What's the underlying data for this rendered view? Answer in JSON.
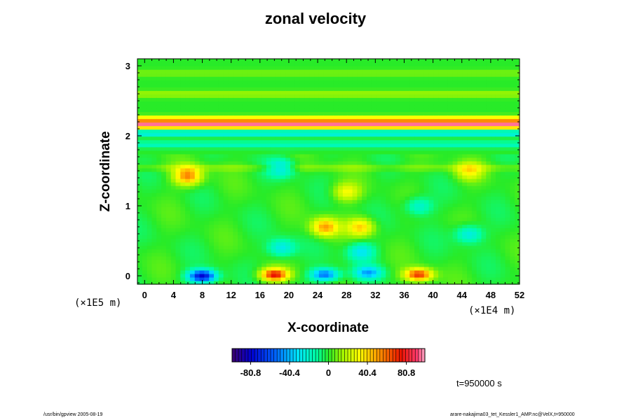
{
  "chart_data": {
    "type": "heatmap",
    "title": "zonal velocity",
    "xlabel": "X-coordinate",
    "ylabel": "Z-coordinate",
    "x_unit": "(×1E4 m)",
    "y_unit": "(×1E5 m)",
    "xlim": [
      -1,
      52
    ],
    "ylim": [
      -0.12,
      3.1
    ],
    "x_ticks": [
      "0",
      "4",
      "8",
      "12",
      "16",
      "20",
      "24",
      "28",
      "32",
      "36",
      "40",
      "44",
      "48",
      "52"
    ],
    "y_ticks": [
      "0",
      "1",
      "2",
      "3"
    ],
    "colorbar": {
      "range": [
        -100,
        100
      ],
      "tick_labels": [
        "-80.8",
        "-40.4",
        "0",
        "40.4",
        "80.8"
      ],
      "tick_values": [
        -80.8,
        -40.4,
        0,
        40.4,
        80.8
      ],
      "colormap": "rainbow (purple-blue-cyan-green-yellow-red-pink)"
    },
    "horizontal_bands": [
      {
        "z": 2.18,
        "value": 85
      },
      {
        "z": 2.24,
        "value": 45
      },
      {
        "z": 2.12,
        "value": 40
      },
      {
        "z": 2.05,
        "value": -35
      },
      {
        "z": 1.88,
        "value": -18
      },
      {
        "z": 2.6,
        "value": 15
      },
      {
        "z": 2.9,
        "value": 10
      },
      {
        "z": 1.55,
        "value": 10
      }
    ],
    "local_features": [
      {
        "x": 8,
        "z": 0.0,
        "value": -80
      },
      {
        "x": 18,
        "z": 0.02,
        "value": 75
      },
      {
        "x": 25,
        "z": 0.02,
        "value": -55
      },
      {
        "x": 31,
        "z": 0.05,
        "value": -40
      },
      {
        "x": 38,
        "z": 0.02,
        "value": 70
      },
      {
        "x": 6,
        "z": 1.43,
        "value": 55
      },
      {
        "x": 25,
        "z": 0.7,
        "value": 50
      },
      {
        "x": 30,
        "z": 0.7,
        "value": 40
      },
      {
        "x": 19,
        "z": 1.55,
        "value": -30
      },
      {
        "x": 19,
        "z": 0.4,
        "value": -30
      },
      {
        "x": 30,
        "z": 0.35,
        "value": -30
      },
      {
        "x": 38,
        "z": 1.0,
        "value": -25
      },
      {
        "x": 45,
        "z": 0.6,
        "value": -30
      },
      {
        "x": 28,
        "z": 1.2,
        "value": 30
      },
      {
        "x": 45,
        "z": 1.5,
        "value": 30
      }
    ]
  },
  "time_label": "t=950000 s",
  "footer_left": "/usr/bin/gpview 2005-08-19",
  "footer_right": "arare-nakajima03_tet_Kessler1_AMP.nc@VelX,t=950000"
}
